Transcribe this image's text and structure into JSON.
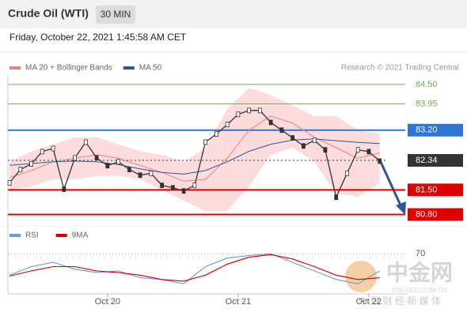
{
  "chart_data": [
    {
      "type": "line",
      "title": "Crude Oil (WTI)",
      "interval": "30 MIN",
      "subtitle": "Friday, October 22, 2021 1:45:58 AM CET",
      "source": "Research © 2021 Trading Central",
      "xlim": [
        -18.3,
        51.5
      ],
      "xticks": [
        {
          "value": 0,
          "label": "Oct 20"
        },
        {
          "value": 24,
          "label": "Oct 21"
        },
        {
          "value": 48,
          "label": "Oct 22"
        }
      ],
      "ylim": [
        80.7,
        84.7
      ],
      "price": {
        "color": "#333333",
        "x": [
          -18,
          -16,
          -14,
          -12,
          -10,
          -8,
          -6,
          -4,
          -2,
          0,
          2,
          4,
          6,
          8,
          10,
          12,
          14,
          16,
          18,
          20,
          22,
          24,
          26,
          28,
          30,
          32,
          34,
          36,
          38,
          40,
          42,
          44,
          46,
          48,
          50
        ],
        "values": [
          81.7,
          82.08,
          82.24,
          82.59,
          82.68,
          81.52,
          82.41,
          82.86,
          82.41,
          82.19,
          82.3,
          82.08,
          81.92,
          81.97,
          81.63,
          81.56,
          81.47,
          81.63,
          82.86,
          83.09,
          83.36,
          83.65,
          83.76,
          83.76,
          83.42,
          83.2,
          82.98,
          82.75,
          82.91,
          82.64,
          81.29,
          81.97,
          82.64,
          82.59,
          82.32
        ]
      },
      "series": [
        {
          "name": "MA 20 + Bollinger Bands",
          "color": "#f08080",
          "band_color": "#fbd3d3",
          "x": [
            -18,
            -14,
            -10,
            -6,
            -2,
            2,
            6,
            10,
            14,
            18,
            22,
            26,
            30,
            34,
            38,
            42,
            46,
            50
          ],
          "values": [
            81.85,
            82.05,
            82.3,
            82.4,
            82.5,
            82.4,
            82.2,
            82.0,
            81.75,
            81.8,
            82.4,
            83.2,
            83.6,
            83.4,
            83.0,
            82.7,
            82.4,
            82.55
          ],
          "upper": [
            82.3,
            82.6,
            82.8,
            83.0,
            83.0,
            82.8,
            82.6,
            82.5,
            82.3,
            82.7,
            83.8,
            84.4,
            84.2,
            83.9,
            83.6,
            83.6,
            83.2,
            83.1
          ],
          "lower": [
            81.5,
            81.6,
            81.8,
            81.8,
            81.9,
            81.9,
            81.8,
            81.5,
            81.2,
            80.9,
            80.9,
            81.6,
            82.5,
            82.7,
            82.3,
            81.4,
            81.3,
            81.7
          ]
        },
        {
          "name": "MA 50",
          "color": "#2f5597",
          "x": [
            -18,
            -14,
            -10,
            -6,
            -2,
            2,
            6,
            10,
            14,
            18,
            22,
            26,
            30,
            34,
            38,
            42,
            46,
            50
          ],
          "values": [
            82.2,
            82.25,
            82.3,
            82.32,
            82.3,
            82.22,
            82.1,
            82.0,
            81.95,
            82.05,
            82.3,
            82.6,
            82.8,
            82.92,
            82.95,
            82.9,
            82.85,
            82.82
          ]
        }
      ],
      "levels": [
        {
          "value": 84.5,
          "label": "84.50",
          "color": "#70ad47"
        },
        {
          "value": 83.95,
          "label": "83.95",
          "color": "#70ad47"
        },
        {
          "value": 83.2,
          "label": "83.20",
          "color": "#2e75d6"
        },
        {
          "value": 82.34,
          "label": "82.34",
          "color": "#333333"
        },
        {
          "value": 81.5,
          "label": "81.50",
          "color": "#e00000"
        },
        {
          "value": 80.8,
          "label": "80.80",
          "color": "#e00000"
        }
      ]
    },
    {
      "type": "line",
      "ylim": [
        25,
        85
      ],
      "yticks": [
        70
      ],
      "series": [
        {
          "name": "RSI",
          "color": "#6a9ae0",
          "x": [
            -18,
            -14,
            -10,
            -6,
            -2,
            2,
            6,
            10,
            14,
            18,
            22,
            26,
            30,
            34,
            38,
            42,
            46,
            50
          ],
          "values": [
            45,
            55,
            60,
            52,
            48,
            50,
            42,
            40,
            35,
            55,
            65,
            68,
            70,
            60,
            50,
            40,
            35,
            50
          ]
        },
        {
          "name": "9MA",
          "color": "#d00000",
          "x": [
            -18,
            -14,
            -10,
            -6,
            -2,
            2,
            6,
            10,
            14,
            18,
            22,
            26,
            30,
            34,
            38,
            42,
            46,
            50
          ],
          "values": [
            44,
            50,
            55,
            55,
            50,
            48,
            45,
            40,
            38,
            45,
            58,
            66,
            69,
            64,
            55,
            45,
            40,
            42
          ]
        }
      ]
    }
  ],
  "watermark": {
    "brand": "中金网",
    "domain": "CNGOLD.COM.CN",
    "tagline": "中 国 财 经 新 媒 体"
  }
}
